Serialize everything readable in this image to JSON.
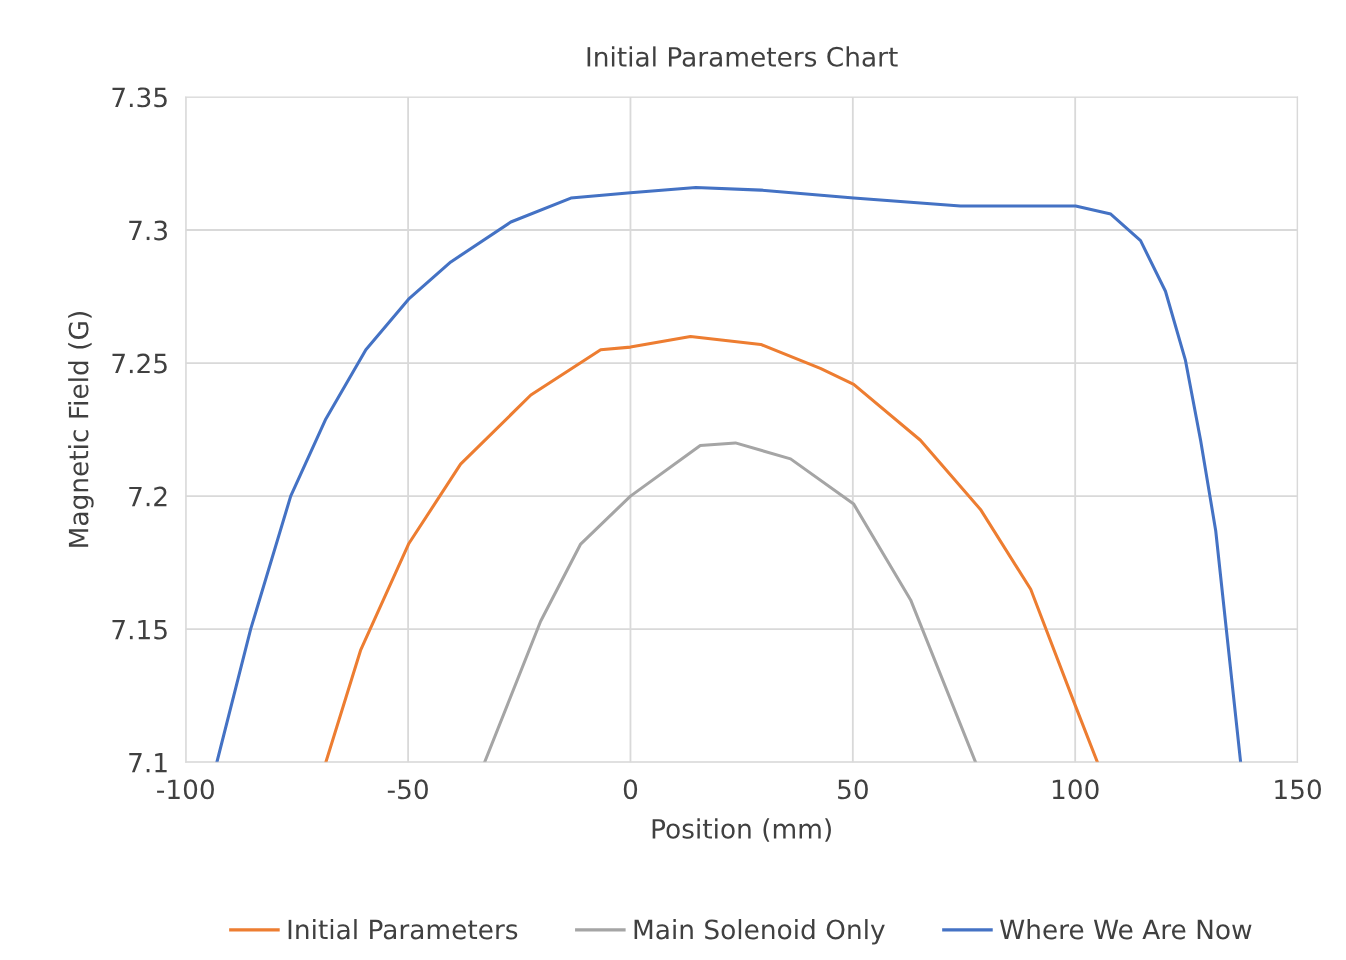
{
  "chart_data": {
    "type": "line",
    "title": "Initial Parameters Chart",
    "xlabel": "Position (mm)",
    "ylabel": "Magnetic Field (G)",
    "xlim": [
      -100,
      150
    ],
    "xticks": [
      -100,
      -50,
      0,
      50,
      100,
      150
    ],
    "ylim": [
      7.1,
      7.35
    ],
    "yticks": [
      7.1,
      7.15,
      7.2,
      7.25,
      7.3,
      7.35
    ],
    "grid": true,
    "legend": "bottom",
    "marker": "none",
    "line_style": "solid",
    "series": [
      {
        "name": "Initial Parameters",
        "color": "#ed7d31",
        "x": [
          -68.5,
          -60.7,
          -49.9,
          -38.2,
          -22.4,
          -6.7,
          0,
          13.5,
          29.3,
          42.7,
          50.2,
          65.2,
          78.7,
          90,
          100.1,
          105
        ],
        "values": [
          7.1,
          7.142,
          7.182,
          7.212,
          7.238,
          7.255,
          7.256,
          7.26,
          7.257,
          7.248,
          7.242,
          7.221,
          7.195,
          7.165,
          7.121,
          7.1
        ]
      },
      {
        "name": "Main Solenoid Only",
        "color": "#a5a5a5",
        "x": [
          -32.8,
          -20.2,
          -11.2,
          0,
          15.7,
          23.6,
          36,
          50.2,
          63,
          77.6
        ],
        "values": [
          7.1,
          7.153,
          7.182,
          7.2,
          7.219,
          7.22,
          7.214,
          7.197,
          7.161,
          7.1
        ]
      },
      {
        "name": "Where We Are Now",
        "color": "#4472c4",
        "x": [
          -93,
          -85.4,
          -76.4,
          -68.5,
          -59.5,
          -49.9,
          -40.4,
          -26.9,
          -13.4,
          0,
          14.7,
          29.3,
          50.2,
          74.2,
          100.1,
          108,
          114.7,
          120.3,
          124.8,
          128.2,
          131.6,
          137.2
        ],
        "values": [
          7.1,
          7.15,
          7.2,
          7.229,
          7.255,
          7.274,
          7.288,
          7.303,
          7.312,
          7.314,
          7.316,
          7.315,
          7.312,
          7.309,
          7.309,
          7.306,
          7.296,
          7.277,
          7.251,
          7.221,
          7.187,
          7.1
        ]
      }
    ]
  }
}
